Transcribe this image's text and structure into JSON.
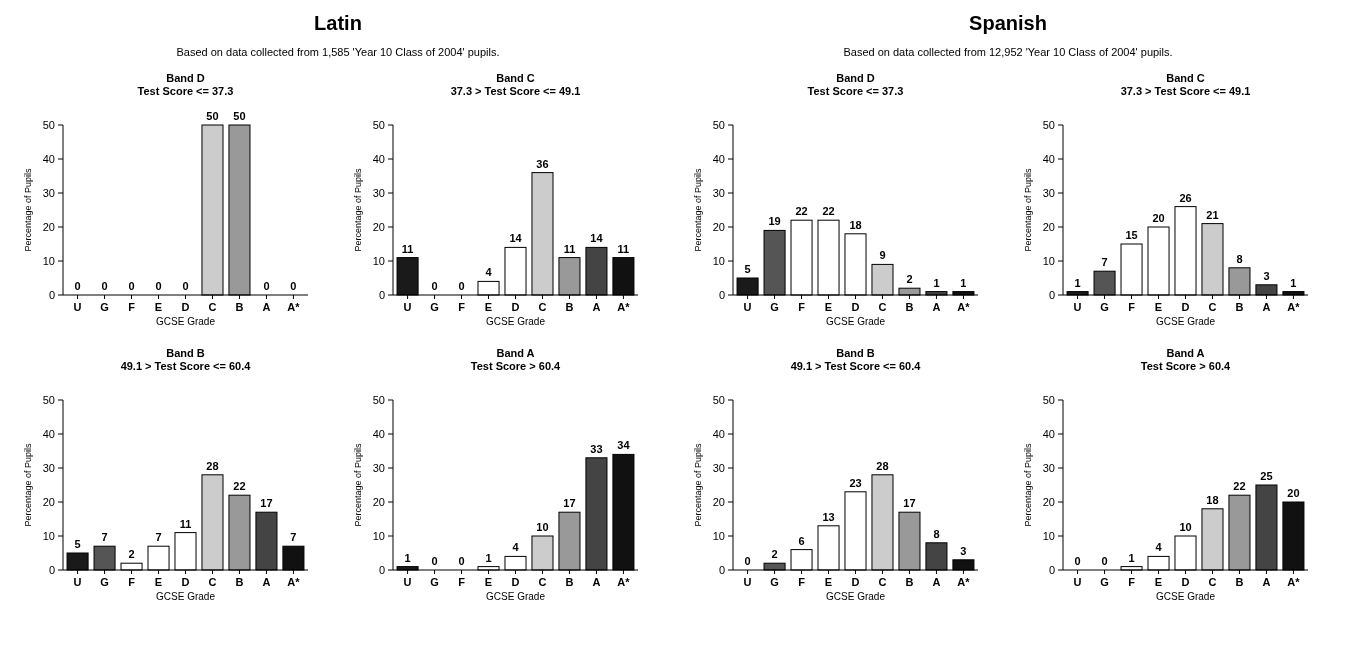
{
  "chart_data": [
    {
      "type": "other",
      "title": "Latin",
      "subtitle": "Based on data collected from 1,585 'Year 10 Class of 2004' pupils."
    },
    {
      "type": "bar",
      "title": "Band D",
      "subtitle": "Test Score <= 37.3",
      "xlabel": "GCSE Grade",
      "ylabel": "Percentage of Pupils",
      "categories": [
        "U",
        "G",
        "F",
        "E",
        "D",
        "C",
        "B",
        "A",
        "A*"
      ],
      "values": [
        0,
        0,
        0,
        0,
        0,
        50,
        50,
        0,
        0
      ],
      "colors": [
        "#1a1a1a",
        "#555555",
        "#ffffff",
        "#ffffff",
        "#ffffff",
        "#cccccc",
        "#999999",
        "#444444",
        "#111111"
      ],
      "ylim": [
        0,
        50
      ],
      "yticks": [
        0,
        10,
        20,
        30,
        40,
        50
      ],
      "data_labels": true
    },
    {
      "type": "bar",
      "title": "Band C",
      "subtitle": "37.3 > Test Score <= 49.1",
      "xlabel": "GCSE Grade",
      "ylabel": "Percentage of Pupils",
      "categories": [
        "U",
        "G",
        "F",
        "E",
        "D",
        "C",
        "B",
        "A",
        "A*"
      ],
      "values": [
        11,
        0,
        0,
        4,
        14,
        36,
        11,
        14,
        11
      ],
      "colors": [
        "#1a1a1a",
        "#555555",
        "#ffffff",
        "#ffffff",
        "#ffffff",
        "#cccccc",
        "#999999",
        "#444444",
        "#111111"
      ],
      "ylim": [
        0,
        50
      ],
      "yticks": [
        0,
        10,
        20,
        30,
        40,
        50
      ],
      "data_labels": true
    },
    {
      "type": "bar",
      "title": "Band B",
      "subtitle": "49.1 > Test Score <= 60.4",
      "xlabel": "GCSE Grade",
      "ylabel": "Percentage of Pupils",
      "categories": [
        "U",
        "G",
        "F",
        "E",
        "D",
        "C",
        "B",
        "A",
        "A*"
      ],
      "values": [
        5,
        7,
        2,
        7,
        11,
        28,
        22,
        17,
        7
      ],
      "colors": [
        "#1a1a1a",
        "#555555",
        "#ffffff",
        "#ffffff",
        "#ffffff",
        "#cccccc",
        "#999999",
        "#444444",
        "#111111"
      ],
      "ylim": [
        0,
        50
      ],
      "yticks": [
        0,
        10,
        20,
        30,
        40,
        50
      ],
      "data_labels": true
    },
    {
      "type": "bar",
      "title": "Band A",
      "subtitle": "Test Score > 60.4",
      "xlabel": "GCSE Grade",
      "ylabel": "Percentage of Pupils",
      "categories": [
        "U",
        "G",
        "F",
        "E",
        "D",
        "C",
        "B",
        "A",
        "A*"
      ],
      "values": [
        1,
        0,
        0,
        1,
        4,
        10,
        17,
        33,
        34
      ],
      "colors": [
        "#1a1a1a",
        "#555555",
        "#ffffff",
        "#ffffff",
        "#ffffff",
        "#cccccc",
        "#999999",
        "#444444",
        "#111111"
      ],
      "ylim": [
        0,
        50
      ],
      "yticks": [
        0,
        10,
        20,
        30,
        40,
        50
      ],
      "data_labels": true
    },
    {
      "type": "other",
      "title": "Spanish",
      "subtitle": "Based on data collected from 12,952 'Year 10 Class of 2004' pupils."
    },
    {
      "type": "bar",
      "title": "Band D",
      "subtitle": "Test Score <= 37.3",
      "xlabel": "GCSE Grade",
      "ylabel": "Percentage of Pupils",
      "categories": [
        "U",
        "G",
        "F",
        "E",
        "D",
        "C",
        "B",
        "A",
        "A*"
      ],
      "values": [
        5,
        19,
        22,
        22,
        18,
        9,
        2,
        1,
        1
      ],
      "colors": [
        "#1a1a1a",
        "#555555",
        "#ffffff",
        "#ffffff",
        "#ffffff",
        "#cccccc",
        "#999999",
        "#444444",
        "#111111"
      ],
      "ylim": [
        0,
        50
      ],
      "yticks": [
        0,
        10,
        20,
        30,
        40,
        50
      ],
      "data_labels": true
    },
    {
      "type": "bar",
      "title": "Band C",
      "subtitle": "37.3 > Test Score <= 49.1",
      "xlabel": "GCSE Grade",
      "ylabel": "Percentage of Pupils",
      "categories": [
        "U",
        "G",
        "F",
        "E",
        "D",
        "C",
        "B",
        "A",
        "A*"
      ],
      "values": [
        1,
        7,
        15,
        20,
        26,
        21,
        8,
        3,
        1
      ],
      "colors": [
        "#1a1a1a",
        "#555555",
        "#ffffff",
        "#ffffff",
        "#ffffff",
        "#cccccc",
        "#999999",
        "#444444",
        "#111111"
      ],
      "ylim": [
        0,
        50
      ],
      "yticks": [
        0,
        10,
        20,
        30,
        40,
        50
      ],
      "data_labels": true
    },
    {
      "type": "bar",
      "title": "Band B",
      "subtitle": "49.1 > Test Score <= 60.4",
      "xlabel": "GCSE Grade",
      "ylabel": "Percentage of Pupils",
      "categories": [
        "U",
        "G",
        "F",
        "E",
        "D",
        "C",
        "B",
        "A",
        "A*"
      ],
      "values": [
        0,
        2,
        6,
        13,
        23,
        28,
        17,
        8,
        3
      ],
      "colors": [
        "#1a1a1a",
        "#555555",
        "#ffffff",
        "#ffffff",
        "#ffffff",
        "#cccccc",
        "#999999",
        "#444444",
        "#111111"
      ],
      "ylim": [
        0,
        50
      ],
      "yticks": [
        0,
        10,
        20,
        30,
        40,
        50
      ],
      "data_labels": true
    },
    {
      "type": "bar",
      "title": "Band A",
      "subtitle": "Test Score > 60.4",
      "xlabel": "GCSE Grade",
      "ylabel": "Percentage of Pupils",
      "categories": [
        "U",
        "G",
        "F",
        "E",
        "D",
        "C",
        "B",
        "A",
        "A*"
      ],
      "values": [
        0,
        0,
        1,
        4,
        10,
        18,
        22,
        25,
        20
      ],
      "colors": [
        "#1a1a1a",
        "#555555",
        "#ffffff",
        "#ffffff",
        "#ffffff",
        "#cccccc",
        "#999999",
        "#444444",
        "#111111"
      ],
      "ylim": [
        0,
        50
      ],
      "yticks": [
        0,
        10,
        20,
        30,
        40,
        50
      ],
      "data_labels": true
    }
  ]
}
